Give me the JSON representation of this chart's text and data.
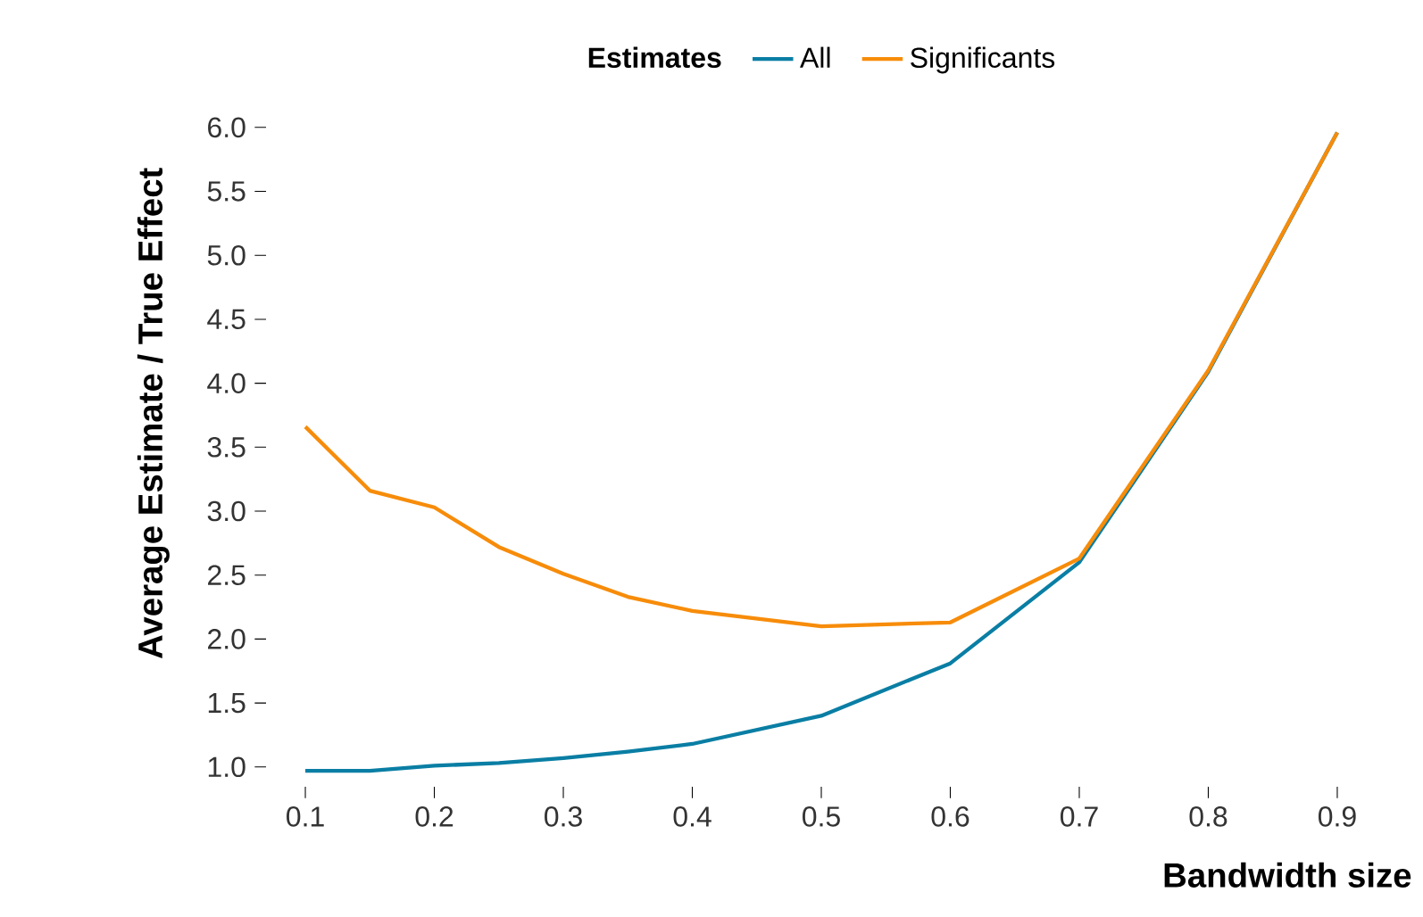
{
  "chart_data": {
    "type": "line",
    "xlabel": "Bandwidth size",
    "ylabel": "Average Estimate / True Effect",
    "legend_title": "Estimates",
    "legend": "top",
    "x": [
      0.1,
      0.15,
      0.2,
      0.25,
      0.3,
      0.35,
      0.4,
      0.5,
      0.6,
      0.7,
      0.8,
      0.9
    ],
    "series": [
      {
        "name": "All",
        "color": "#0a7ea4",
        "values": [
          0.97,
          0.97,
          1.01,
          1.03,
          1.07,
          1.12,
          1.18,
          1.4,
          1.81,
          2.6,
          4.09,
          5.96
        ]
      },
      {
        "name": "Significants",
        "color": "#f78c0a",
        "values": [
          3.66,
          3.16,
          3.03,
          2.72,
          2.51,
          2.33,
          2.22,
          2.1,
          2.13,
          2.63,
          4.1,
          5.96
        ]
      }
    ],
    "xticks": [
      0.1,
      0.2,
      0.3,
      0.4,
      0.5,
      0.6,
      0.7,
      0.8,
      0.9
    ],
    "xlim": [
      0.07,
      0.93
    ],
    "ylim": [
      0.85,
      6.15
    ],
    "yticks": [
      {
        "value": 1,
        "label": "1.0"
      },
      {
        "value": 1.5,
        "label": "1.5"
      },
      {
        "value": 2,
        "label": "2.0"
      },
      {
        "value": 2.5,
        "label": "2.5"
      },
      {
        "value": 3,
        "label": "3.0"
      },
      {
        "value": 3.5,
        "label": "3.5"
      },
      {
        "value": 4,
        "label": "4.0"
      },
      {
        "value": 4.5,
        "label": "4.5"
      },
      {
        "value": 5,
        "label": "5.0"
      },
      {
        "value": 5.5,
        "label": "5.5"
      },
      {
        "value": 6,
        "label": "6.0"
      }
    ],
    "grid": false,
    "marker": "none",
    "line_style": "solid"
  }
}
